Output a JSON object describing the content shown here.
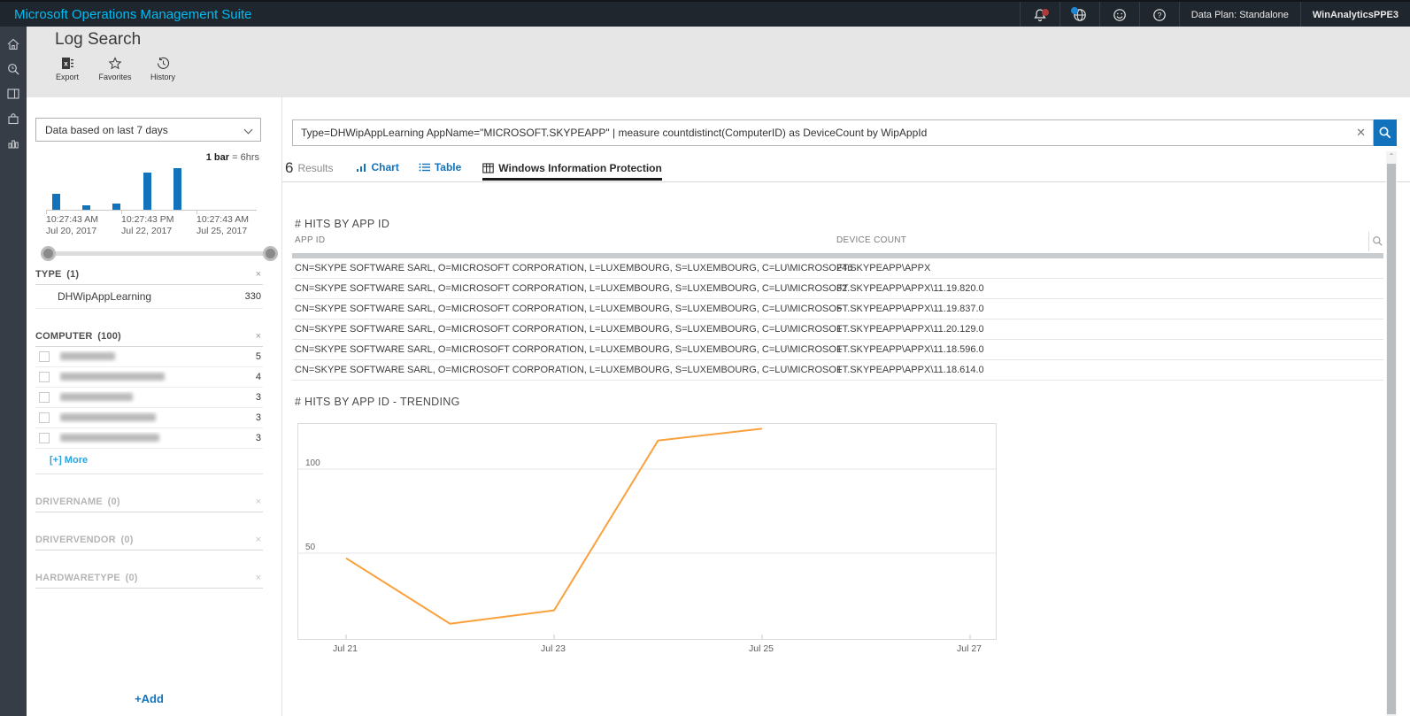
{
  "topbar": {
    "title": "Microsoft Operations Management Suite",
    "data_plan": "Data Plan: Standalone",
    "workspace": "WinAnalyticsPPE3",
    "icons": [
      "notifications-bell",
      "globe",
      "feedback-smiley",
      "help"
    ],
    "accent_color": "#00bcf2"
  },
  "side_rail": {
    "items": [
      "home",
      "log-search",
      "dashboard",
      "solutions-gallery",
      "usage"
    ]
  },
  "header": {
    "title": "Log Search",
    "toolbar": [
      {
        "name": "export",
        "label": "Export"
      },
      {
        "name": "favorites",
        "label": "Favorites"
      },
      {
        "name": "history",
        "label": "History"
      }
    ]
  },
  "filters": {
    "scope_dropdown": "Data based on last 7 days",
    "legend_bold": "1 bar",
    "legend_rest": "= 6hrs",
    "histogram_ticks": [
      {
        "time": "10:27:43 AM",
        "date": "Jul 20, 2017"
      },
      {
        "time": "10:27:43 PM",
        "date": "Jul 22, 2017"
      },
      {
        "time": "10:27:43 AM",
        "date": "Jul 25, 2017"
      }
    ],
    "sections": [
      {
        "title": "TYPE",
        "count": "(1)",
        "empty": false,
        "rows": [
          {
            "label": "DHWipAppLearning",
            "value": "330",
            "checkbox": false,
            "redacted": false,
            "blur_width": 0
          }
        ],
        "more_label": ""
      },
      {
        "title": "COMPUTER",
        "count": "(100)",
        "empty": false,
        "rows": [
          {
            "label": "",
            "value": "5",
            "checkbox": true,
            "redacted": true,
            "blur_width": 62
          },
          {
            "label": "",
            "value": "4",
            "checkbox": true,
            "redacted": true,
            "blur_width": 118
          },
          {
            "label": "",
            "value": "3",
            "checkbox": true,
            "redacted": true,
            "blur_width": 82
          },
          {
            "label": "",
            "value": "3",
            "checkbox": true,
            "redacted": true,
            "blur_width": 108
          },
          {
            "label": "",
            "value": "3",
            "checkbox": true,
            "redacted": true,
            "blur_width": 112
          }
        ],
        "more_label": "[+] More"
      },
      {
        "title": "DRIVERNAME",
        "count": "(0)",
        "empty": true,
        "rows": [],
        "more_label": ""
      },
      {
        "title": "DRIVERVENDOR",
        "count": "(0)",
        "empty": true,
        "rows": [],
        "more_label": ""
      },
      {
        "title": "HARDWARETYPE",
        "count": "(0)",
        "empty": true,
        "rows": [],
        "more_label": ""
      }
    ],
    "add_label": "+Add"
  },
  "search": {
    "query": "Type=DHWipAppLearning AppName=\"MICROSOFT.SKYPEAPP\" | measure countdistinct(ComputerID) as DeviceCount by WipAppId",
    "clear_glyph": "✕"
  },
  "results_bar": {
    "count": "6",
    "count_label": "Results",
    "tabs": [
      {
        "label": "Chart",
        "active": false
      },
      {
        "label": "Table",
        "active": false
      },
      {
        "label": "Windows Information Protection",
        "active": true
      }
    ]
  },
  "hits_table": {
    "title": "# HITS BY APP ID",
    "columns": [
      "APP ID",
      "DEVICE COUNT"
    ],
    "rows": [
      {
        "app_id": "CN=SKYPE SOFTWARE SARL, O=MICROSOFT CORPORATION, L=LUXEMBOURG, S=LUXEMBOURG, C=LU\\MICROSOFT.SKYPEAPP\\APPX",
        "device_count": "246"
      },
      {
        "app_id": "CN=SKYPE SOFTWARE SARL, O=MICROSOFT CORPORATION, L=LUXEMBOURG, S=LUXEMBOURG, C=LU\\MICROSOFT.SKYPEAPP\\APPX\\11.19.820.0",
        "device_count": "32"
      },
      {
        "app_id": "CN=SKYPE SOFTWARE SARL, O=MICROSOFT CORPORATION, L=LUXEMBOURG, S=LUXEMBOURG, C=LU\\MICROSOFT.SKYPEAPP\\APPX\\11.19.837.0",
        "device_count": "5"
      },
      {
        "app_id": "CN=SKYPE SOFTWARE SARL, O=MICROSOFT CORPORATION, L=LUXEMBOURG, S=LUXEMBOURG, C=LU\\MICROSOFT.SKYPEAPP\\APPX\\11.20.129.0",
        "device_count": "1"
      },
      {
        "app_id": "CN=SKYPE SOFTWARE SARL, O=MICROSOFT CORPORATION, L=LUXEMBOURG, S=LUXEMBOURG, C=LU\\MICROSOFT.SKYPEAPP\\APPX\\11.18.596.0",
        "device_count": "1"
      },
      {
        "app_id": "CN=SKYPE SOFTWARE SARL, O=MICROSOFT CORPORATION, L=LUXEMBOURG, S=LUXEMBOURG, C=LU\\MICROSOFT.SKYPEAPP\\APPX\\11.18.614.0",
        "device_count": "1"
      }
    ]
  },
  "trending": {
    "title": "# HITS BY APP ID - TRENDING"
  },
  "chart_data": [
    {
      "id": "time-histogram",
      "type": "bar",
      "title": "",
      "legend": "1 bar = 6hrs",
      "x_tick_labels": [
        "10:27:43 AM Jul 20, 2017",
        "10:27:43 PM Jul 22, 2017",
        "10:27:43 AM Jul 25, 2017"
      ],
      "values_relative": [
        0.38,
        0.11,
        0.15,
        0.89,
        1.0
      ],
      "bar_color": "#1272bb",
      "note": "no y-axis labels shown; bar heights estimated relative to tallest bar"
    },
    {
      "id": "hits-trending",
      "type": "line",
      "title": "# HITS BY APP ID - TRENDING",
      "x": [
        "Jul 21",
        "Jul 22",
        "Jul 23",
        "Jul 24",
        "Jul 25"
      ],
      "values": [
        47,
        8,
        16,
        117,
        124
      ],
      "xticks": [
        "Jul 21",
        "Jul 23",
        "Jul 25",
        "Jul 27"
      ],
      "xtick_days": [
        0,
        2,
        4,
        6
      ],
      "ylim": [
        0,
        129
      ],
      "gridlines": [
        50,
        100
      ],
      "line_color": "#f9a13c",
      "grid": true,
      "legend_position": "none"
    }
  ]
}
